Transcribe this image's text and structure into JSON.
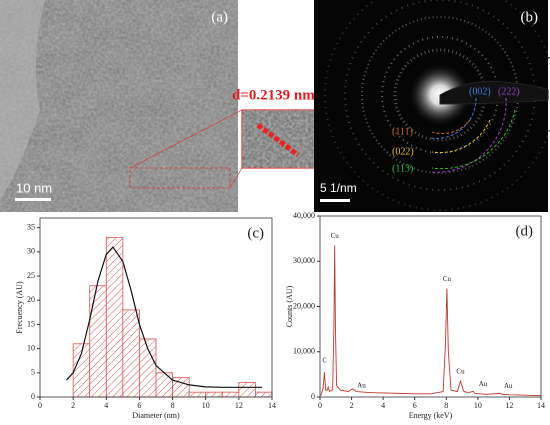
{
  "images": [
    {
      "label": "(a)",
      "scale_bar": "10 nm",
      "annotation": "d=0.2139 nm"
    },
    {
      "label": "(b)",
      "scale_bar": "5 1/nm",
      "planes": [
        "(002)",
        "(222)",
        "(111)",
        "(022)",
        "(113)"
      ],
      "plane_colors": [
        "#3a7be0",
        "#9b3fc8",
        "#d2691e",
        "#e0c020",
        "#30c030"
      ]
    }
  ],
  "chart_data": [
    {
      "type": "histogram",
      "label": "(c)",
      "xlabel": "Diameter (nm)",
      "ylabel": "Frecuency (AU)",
      "bins": [
        2,
        3,
        4,
        5,
        6,
        7,
        8,
        9,
        10,
        11,
        12,
        13,
        14
      ],
      "values": [
        11,
        23,
        33,
        18,
        12,
        5,
        4,
        1,
        1,
        1,
        3,
        1
      ],
      "color": "#d9534f",
      "fit": {
        "color": "#111111",
        "x": [
          1.6,
          2,
          2.5,
          3,
          3.5,
          4,
          4.4,
          5,
          5.5,
          6,
          6.5,
          7,
          8,
          9,
          10,
          11,
          12,
          13.4
        ],
        "values": [
          3.5,
          5,
          9,
          16,
          24,
          29.5,
          31,
          28,
          22,
          15,
          10,
          6.5,
          3.5,
          2.5,
          2.1,
          2,
          2,
          2
        ]
      },
      "xlim": [
        0,
        14
      ],
      "xticks": [
        0,
        2,
        4,
        6,
        8,
        10,
        12,
        14
      ],
      "ylim": [
        0,
        37
      ],
      "yticks": [
        0,
        5,
        10,
        15,
        20,
        25,
        30,
        35
      ]
    },
    {
      "type": "line",
      "label": "(d)",
      "xlabel": "Energy (keV)",
      "ylabel": "Counts (AU)",
      "color": "#c0392b",
      "x": [
        0.05,
        0.2,
        0.28,
        0.36,
        0.45,
        0.52,
        0.6,
        0.8,
        0.88,
        0.93,
        0.98,
        1.05,
        1.3,
        1.8,
        2.05,
        2.15,
        2.3,
        3,
        4,
        5,
        6,
        7,
        7.8,
        7.95,
        8.04,
        8.13,
        8.3,
        8.7,
        8.9,
        9.1,
        9.4,
        9.7,
        9.8,
        10.5,
        11.4,
        11.5,
        12,
        13,
        14
      ],
      "values": [
        300,
        2000,
        5500,
        1500,
        1500,
        2200,
        1200,
        1600,
        15000,
        33500,
        15000,
        2500,
        1500,
        1200,
        1800,
        1600,
        1200,
        1000,
        900,
        800,
        700,
        700,
        1200,
        12000,
        24000,
        10000,
        1500,
        1200,
        3500,
        1300,
        900,
        1300,
        800,
        600,
        800,
        600,
        500,
        400,
        300
      ],
      "annotations": [
        "Cu",
        "Cu",
        "Cu",
        "C",
        "Au",
        "Au",
        "Au"
      ],
      "xlim": [
        0,
        14
      ],
      "xticks": [
        0,
        2,
        4,
        6,
        8,
        10,
        12,
        14
      ],
      "ylim": [
        0,
        40000
      ],
      "yticks": [
        0,
        {
          "value": 10000,
          "label": "10,000"
        },
        {
          "value": 20000,
          "label": "20,000"
        },
        {
          "value": 30000,
          "label": "30,000"
        },
        {
          "value": 40000,
          "label": "40,000"
        }
      ]
    }
  ]
}
